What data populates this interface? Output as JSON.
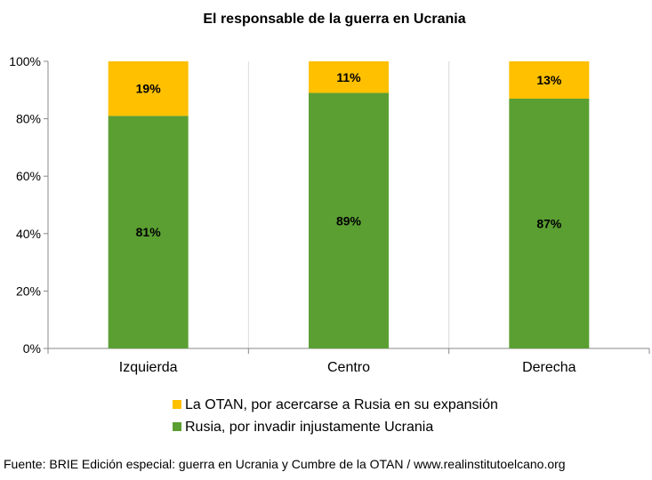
{
  "chart_data": {
    "type": "bar",
    "stacked": true,
    "title": "El responsable de la guerra en Ucrania",
    "categories": [
      "Izquierda",
      "Centro",
      "Derecha"
    ],
    "series": [
      {
        "name": "Rusia, por invadir injustamente Ucrania",
        "values": [
          81,
          89,
          87
        ],
        "labels": [
          "81%",
          "89%",
          "87%"
        ],
        "color": "#5b9f33"
      },
      {
        "name": "La OTAN, por acercarse a Rusia en su expansión",
        "values": [
          19,
          11,
          13
        ],
        "labels": [
          "19%",
          "11%",
          "13%"
        ],
        "color": "#ffc000"
      }
    ],
    "y_ticks": [
      "0%",
      "20%",
      "40%",
      "60%",
      "80%",
      "100%"
    ],
    "ylim": [
      0,
      100
    ],
    "grid": "vertical separators between categories",
    "legend_position": "bottom",
    "legend_order": [
      "La OTAN, por acercarse a Rusia en su expansión",
      "Rusia, por invadir injustamente Ucrania"
    ]
  },
  "source": "Fuente: BRIE Edición especial: guerra en Ucrania y Cumbre de la OTAN / www.realinstitutoelcano.org"
}
